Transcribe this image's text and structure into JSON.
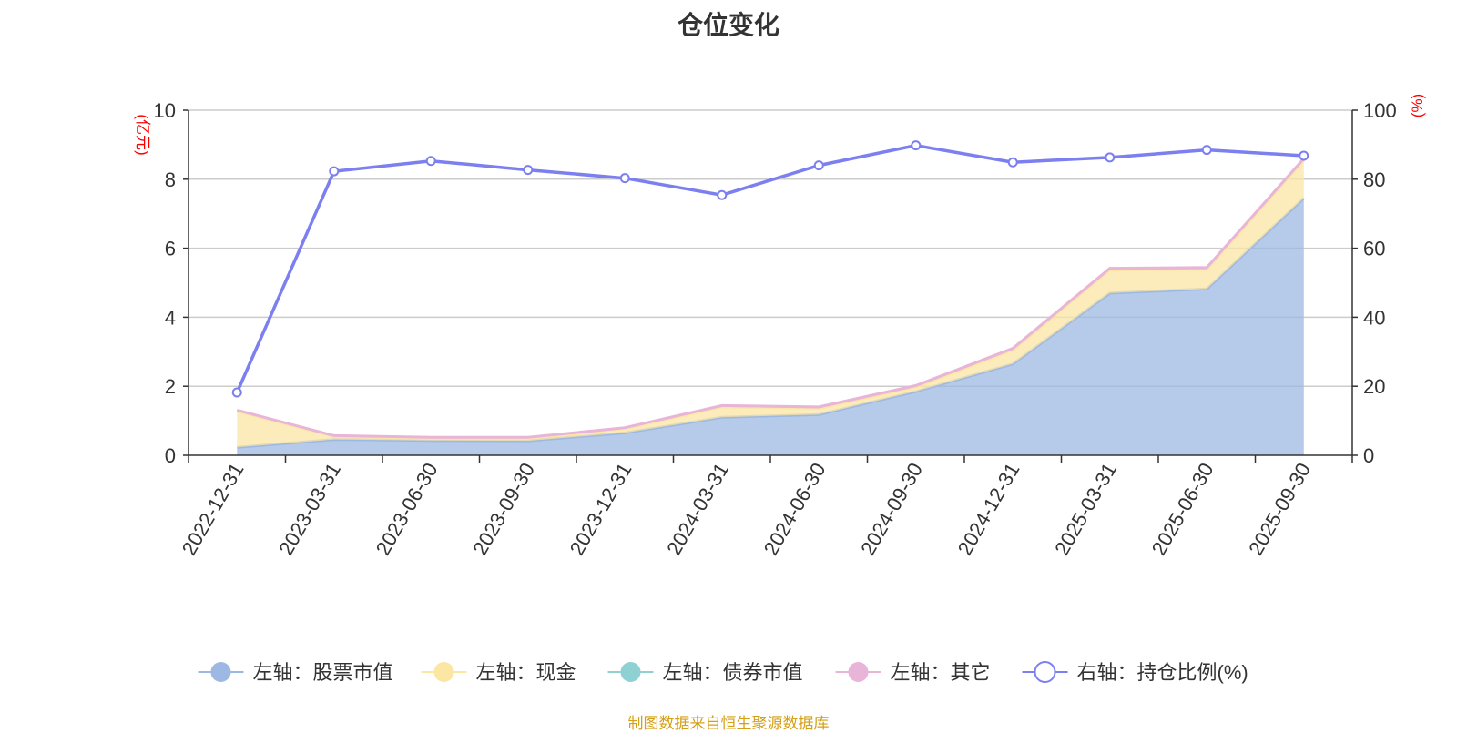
{
  "chart_data": {
    "type": "area",
    "title": "仓位变化",
    "categories": [
      "2022-12-31",
      "2023-03-31",
      "2023-06-30",
      "2023-09-30",
      "2023-12-31",
      "2024-03-31",
      "2024-06-30",
      "2024-09-30",
      "2024-12-31",
      "2025-03-31",
      "2025-06-30",
      "2025-09-30"
    ],
    "left_axis": {
      "unit": "(亿元)",
      "ylim": [
        0,
        10
      ],
      "ticks": [
        0,
        2,
        4,
        6,
        8,
        10
      ]
    },
    "right_axis": {
      "unit": "(%)",
      "ylim": [
        0,
        100
      ],
      "ticks": [
        0,
        20,
        40,
        60,
        80,
        100
      ]
    },
    "series": [
      {
        "name": "左轴：股票市值",
        "axis": "left",
        "type": "area",
        "color": "#9db8e3",
        "values": [
          0.23,
          0.46,
          0.43,
          0.42,
          0.65,
          1.1,
          1.18,
          1.85,
          2.65,
          4.7,
          4.82,
          7.45
        ]
      },
      {
        "name": "左轴：现金",
        "axis": "left",
        "type": "area",
        "color": "#fbe6a4",
        "values": [
          1.05,
          0.08,
          0.06,
          0.07,
          0.12,
          0.3,
          0.18,
          0.13,
          0.4,
          0.67,
          0.57,
          1.1
        ]
      },
      {
        "name": "左轴：债券市值",
        "axis": "left",
        "type": "area",
        "color": "#8fd1d3",
        "values": [
          0,
          0,
          0,
          0,
          0,
          0,
          0,
          0,
          0,
          0,
          0,
          0
        ]
      },
      {
        "name": "左轴：其它",
        "axis": "left",
        "type": "area",
        "color": "#e8b4d8",
        "values": [
          0.03,
          0.03,
          0.03,
          0.03,
          0.03,
          0.04,
          0.04,
          0.04,
          0.05,
          0.05,
          0.05,
          0.05
        ]
      },
      {
        "name": "右轴：持仓比例(%)",
        "axis": "right",
        "type": "line",
        "color": "#7b7fef",
        "values": [
          18.2,
          82.3,
          85.3,
          82.7,
          80.3,
          75.4,
          84.0,
          89.8,
          84.9,
          86.3,
          88.5,
          86.8
        ]
      }
    ],
    "legend_position": "bottom",
    "grid": true
  },
  "source_note": "制图数据来自恒生聚源数据库"
}
